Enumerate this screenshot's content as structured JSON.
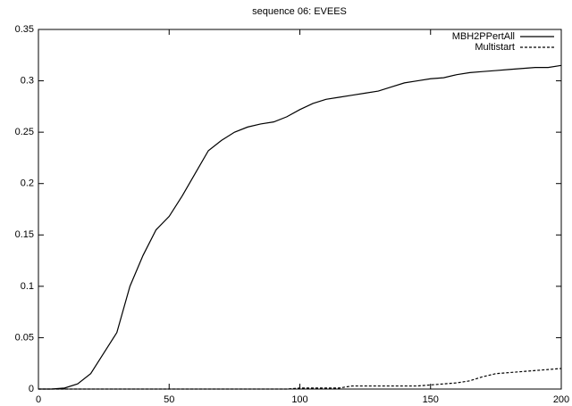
{
  "chart_data": {
    "type": "line",
    "title": "sequence 06: EVEES",
    "x": [
      0,
      5,
      10,
      15,
      20,
      25,
      30,
      35,
      40,
      45,
      50,
      55,
      60,
      65,
      70,
      75,
      80,
      85,
      90,
      95,
      100,
      105,
      110,
      115,
      120,
      125,
      130,
      135,
      140,
      145,
      150,
      155,
      160,
      165,
      170,
      175,
      180,
      185,
      190,
      195,
      200
    ],
    "series": [
      {
        "name": "MBH2PPertAll",
        "color": "#000000",
        "line_style": "solid",
        "values": [
          0,
          0,
          0.001,
          0.005,
          0.015,
          0.035,
          0.055,
          0.1,
          0.13,
          0.155,
          0.168,
          0.188,
          0.21,
          0.232,
          0.242,
          0.25,
          0.255,
          0.258,
          0.26,
          0.265,
          0.272,
          0.278,
          0.282,
          0.284,
          0.286,
          0.288,
          0.29,
          0.294,
          0.298,
          0.3,
          0.302,
          0.303,
          0.306,
          0.308,
          0.309,
          0.31,
          0.311,
          0.312,
          0.313,
          0.313,
          0.315
        ]
      },
      {
        "name": "Multistart",
        "color": "#000000",
        "line_style": "dashed",
        "values": [
          0,
          0,
          0,
          0,
          0,
          0,
          0,
          0,
          0,
          0,
          0,
          0,
          0,
          0,
          0,
          0,
          0,
          0,
          0,
          0,
          0.001,
          0.001,
          0.001,
          0.001,
          0.003,
          0.003,
          0.003,
          0.003,
          0.003,
          0.003,
          0.004,
          0.005,
          0.006,
          0.008,
          0.012,
          0.015,
          0.016,
          0.017,
          0.018,
          0.019,
          0.02
        ]
      }
    ],
    "xlim": [
      0,
      200
    ],
    "xticks": [
      0,
      50,
      100,
      150,
      200
    ],
    "ylim": [
      0,
      0.35
    ],
    "yticks": [
      0,
      0.05,
      0.1,
      0.15,
      0.2,
      0.25,
      0.3,
      0.35
    ],
    "legend": "top-right",
    "grid": false
  }
}
